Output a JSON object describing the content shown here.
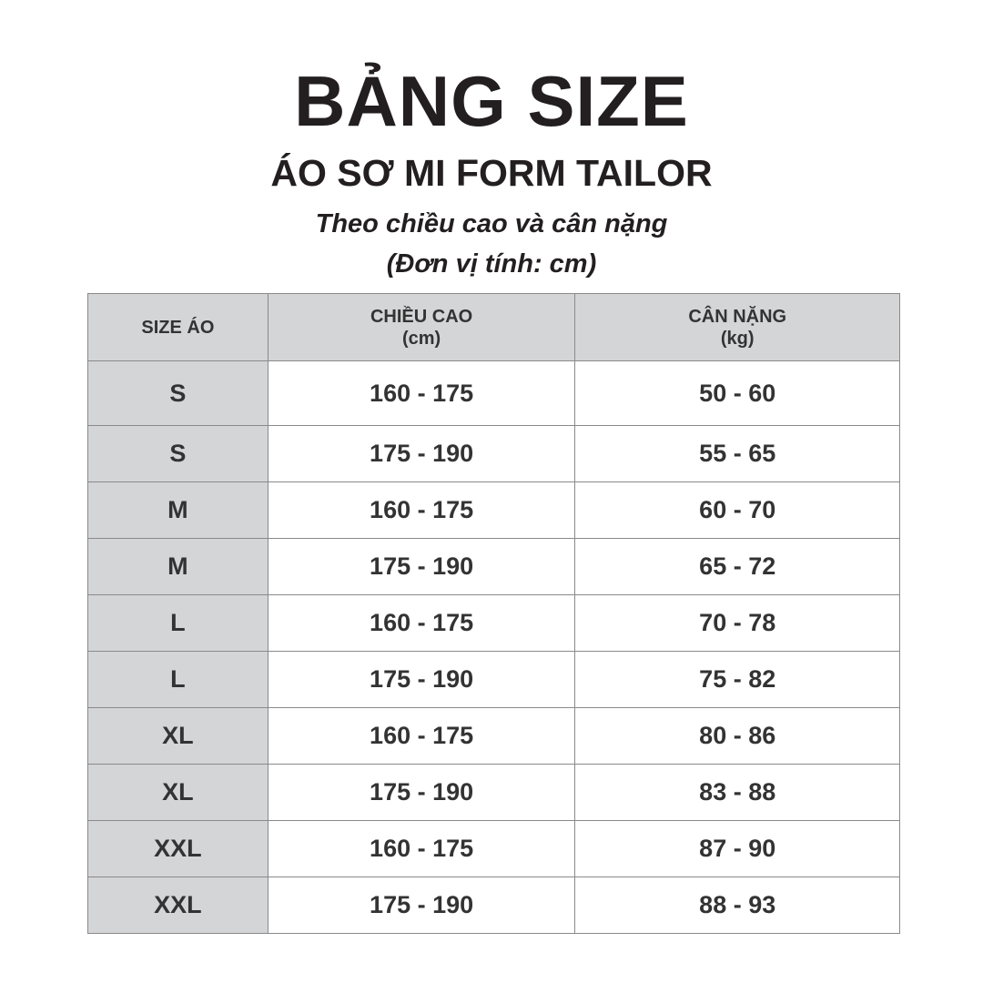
{
  "title": "BẢNG SIZE",
  "subtitle": "ÁO SƠ MI FORM TAILOR",
  "note_line1": "Theo chiều cao và cân nặng",
  "note_line2": "(Đơn vị tính: cm)",
  "table": {
    "headers": [
      {
        "label": "SIZE ÁO",
        "unit": ""
      },
      {
        "label": "CHIỀU CAO",
        "unit": "(cm)"
      },
      {
        "label": "CÂN NẶNG",
        "unit": "(kg)"
      }
    ],
    "rows": [
      {
        "size": "S",
        "height": "160 - 175",
        "weight": "50 - 60"
      },
      {
        "size": "S",
        "height": "175 - 190",
        "weight": "55 - 65"
      },
      {
        "size": "M",
        "height": "160 - 175",
        "weight": "60 - 70"
      },
      {
        "size": "M",
        "height": "175 - 190",
        "weight": "65 - 72"
      },
      {
        "size": "L",
        "height": "160 - 175",
        "weight": "70 - 78"
      },
      {
        "size": "L",
        "height": "175 - 190",
        "weight": "75 - 82"
      },
      {
        "size": "XL",
        "height": "160 - 175",
        "weight": "80 - 86"
      },
      {
        "size": "XL",
        "height": "175 - 190",
        "weight": "83 - 88"
      },
      {
        "size": "XXL",
        "height": "160 - 175",
        "weight": "87 - 90"
      },
      {
        "size": "XXL",
        "height": "175 - 190",
        "weight": "88 - 93"
      }
    ]
  },
  "colors": {
    "header_bg": "#d4d5d7",
    "text": "#231f20",
    "border": "#8a8a8a"
  }
}
